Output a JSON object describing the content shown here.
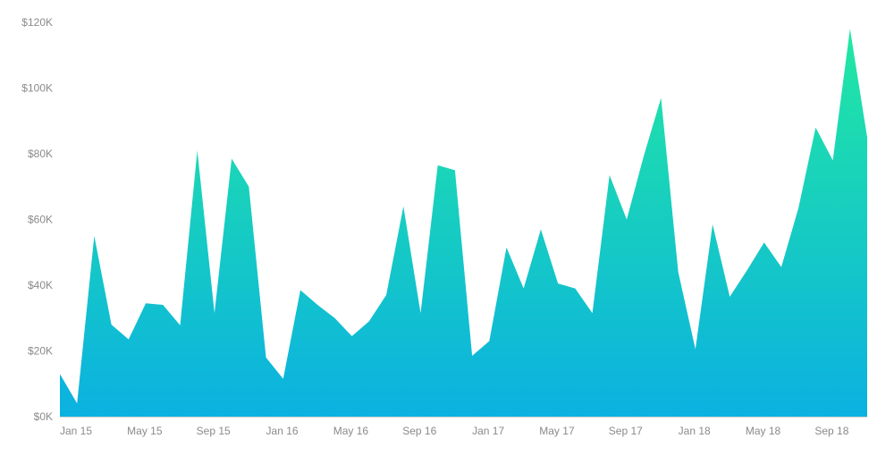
{
  "chart_data": {
    "type": "area",
    "title": "",
    "xlabel": "",
    "ylabel": "",
    "ylim": [
      0,
      120000
    ],
    "grid": false,
    "legend": "none",
    "y_ticks": [
      {
        "value": 0,
        "label": "$0K"
      },
      {
        "value": 20000,
        "label": "$20K"
      },
      {
        "value": 40000,
        "label": "$40K"
      },
      {
        "value": 60000,
        "label": "$60K"
      },
      {
        "value": 80000,
        "label": "$80K"
      },
      {
        "value": 100000,
        "label": "$100K"
      },
      {
        "value": 120000,
        "label": "$120K"
      }
    ],
    "x_ticks": [
      {
        "index": 0,
        "label": "Jan 15"
      },
      {
        "index": 4,
        "label": "May 15"
      },
      {
        "index": 8,
        "label": "Sep 15"
      },
      {
        "index": 12,
        "label": "Jan 16"
      },
      {
        "index": 16,
        "label": "May 16"
      },
      {
        "index": 20,
        "label": "Sep 16"
      },
      {
        "index": 24,
        "label": "Jan 17"
      },
      {
        "index": 28,
        "label": "May 17"
      },
      {
        "index": 32,
        "label": "Sep 17"
      },
      {
        "index": 36,
        "label": "Jan 18"
      },
      {
        "index": 40,
        "label": "May 18"
      },
      {
        "index": 44,
        "label": "Sep 18"
      }
    ],
    "x": [
      "Jan 15",
      "Feb 15",
      "Mar 15",
      "Apr 15",
      "May 15",
      "Jun 15",
      "Jul 15",
      "Aug 15",
      "Sep 15",
      "Oct 15",
      "Nov 15",
      "Dec 15",
      "Jan 16",
      "Feb 16",
      "Mar 16",
      "Apr 16",
      "May 16",
      "Jun 16",
      "Jul 16",
      "Aug 16",
      "Sep 16",
      "Oct 16",
      "Nov 16",
      "Dec 16",
      "Jan 17",
      "Feb 17",
      "Mar 17",
      "Apr 17",
      "May 17",
      "Jun 17",
      "Jul 17",
      "Aug 17",
      "Sep 17",
      "Oct 17",
      "Nov 17",
      "Dec 17",
      "Jan 18",
      "Feb 18",
      "Mar 18",
      "Apr 18",
      "May 18",
      "Jun 18",
      "Jul 18",
      "Aug 18",
      "Sep 18",
      "Oct 18",
      "Nov 18",
      "Dec 18"
    ],
    "series": [
      {
        "values": [
          13000,
          4000,
          55000,
          28000,
          23500,
          34500,
          34000,
          27800,
          81000,
          31500,
          78500,
          70000,
          18000,
          11500,
          38500,
          34000,
          30000,
          24500,
          29000,
          37000,
          64000,
          31500,
          76500,
          75000,
          18500,
          23000,
          51500,
          39000,
          57000,
          40500,
          39000,
          31500,
          73500,
          60000,
          79500,
          97000,
          44000,
          20500,
          58500,
          36500,
          44500,
          53000,
          45500,
          63500,
          88000,
          78000,
          118000,
          85000
        ]
      }
    ],
    "colors": {
      "gradient_top": "#22e8a2",
      "gradient_bottom": "#0bb1e1",
      "axis_text": "#8a8a8a",
      "baseline": "#d0d0d0"
    }
  }
}
